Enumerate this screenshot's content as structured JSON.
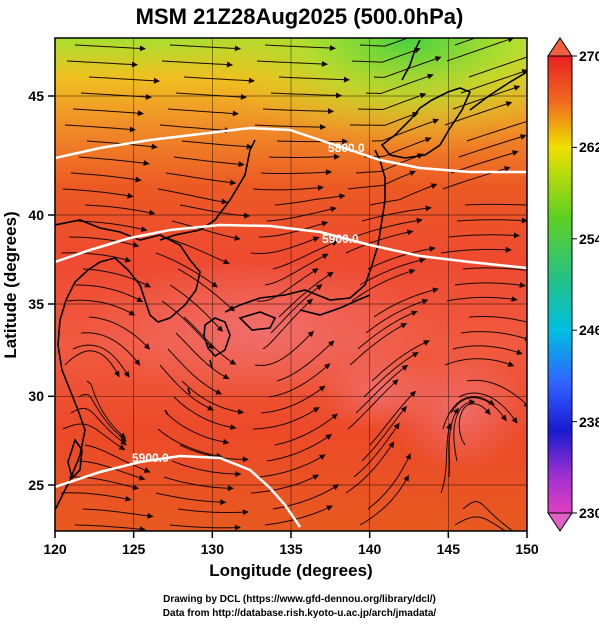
{
  "title": "MSM 21Z28Aug2025 (500.0hPa)",
  "map": {
    "x_axis": {
      "label": "Longitude (degrees)",
      "min": 120,
      "max": 150,
      "ticks": [
        "120",
        "125",
        "130",
        "135",
        "140",
        "145",
        "150"
      ]
    },
    "y_axis": {
      "label": "Latitude  (degrees)",
      "min": 22.5,
      "max": 47.5,
      "ticks": [
        "25",
        "30",
        "35",
        "40",
        "45"
      ]
    },
    "grid": true,
    "contours": [
      {
        "label": "5800.0",
        "lat_approx": 42.5
      },
      {
        "label": "5900.0",
        "lat_approx": 38.0
      },
      {
        "label": "5900.0",
        "lat_approx": 24.5
      }
    ]
  },
  "colorbar": {
    "min": 230,
    "max": 270,
    "ticks": [
      "270",
      "262",
      "254",
      "246",
      "238",
      "230"
    ],
    "colors": {
      "c230": "#e040c0",
      "c238": "#1a1aff",
      "c246": "#00c0e0",
      "c254": "#20c040",
      "c262": "#f0e000",
      "c270": "#e82020"
    }
  },
  "credits": {
    "line1": "Drawing by DCL (https://www.gfd-dennou.org/library/dcl/)",
    "line2": "Data from http://database.rish.kyoto-u.ac.jp/arch/jmadata/"
  }
}
